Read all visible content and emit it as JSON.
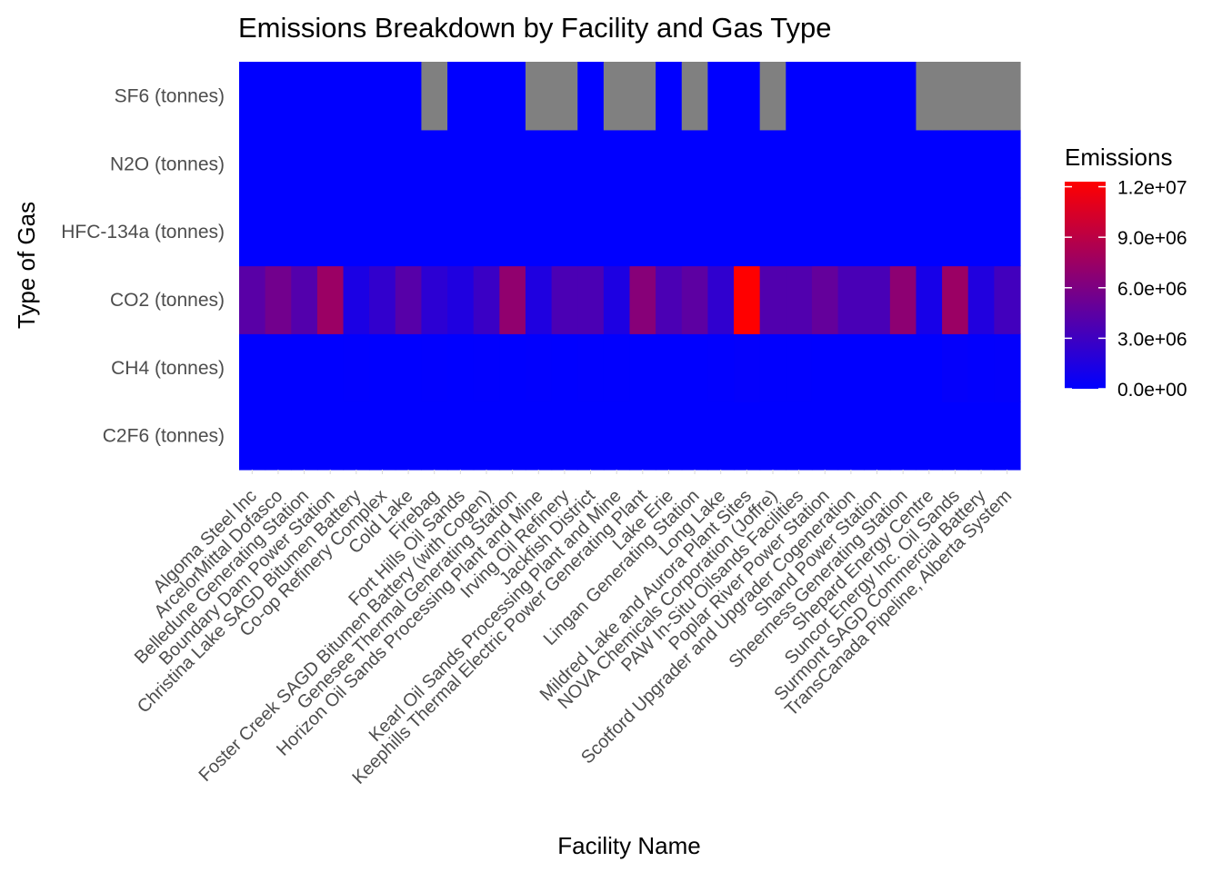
{
  "chart_data": {
    "type": "heatmap",
    "title": "Emissions Breakdown by Facility and Gas Type",
    "xlabel": "Facility Name",
    "ylabel": "Type of Gas",
    "legend": {
      "title": "Emissions",
      "position": "right",
      "ticks": [
        "0.0e+00",
        "3.0e+06",
        "6.0e+06",
        "9.0e+06",
        "1.2e+07"
      ],
      "tick_values": [
        0,
        3000000,
        6000000,
        9000000,
        12000000
      ],
      "range": [
        0,
        12300000
      ],
      "low_color": "#0000ff",
      "high_color": "#ff0000"
    },
    "na_color": "#808080",
    "grid": true,
    "x": [
      "Algoma Steel Inc",
      "ArcelorMittal Dofasco",
      "Belledune Generating Station",
      "Boundary Dam Power Station",
      "Christina Lake SAGD Bitumen Battery",
      "Co-op Refinery Complex",
      "Cold Lake",
      "Firebag",
      "Fort Hills Oil Sands",
      "Foster Creek SAGD Bitumen Battery (with Cogen)",
      "Genesee Thermal Generating Station",
      "Horizon Oil Sands Processing Plant and Mine",
      "Irving Oil Refinery",
      "Jackfish District",
      "Kearl Oil Sands Processing Plant and Mine",
      "Keephills Thermal Electric Power Generating Plant",
      "Lake Erie",
      "Lingan Generating Station",
      "Long Lake",
      "Mildred Lake and Aurora Plant Sites",
      "NOVA Chemicals Corporation (Joffre)",
      "PAW In-Situ Oilsands Facilities",
      "Poplar River Power Station",
      "Scotford Upgrader and Upgrader Cogeneration",
      "Shand Power Station",
      "Sheerness Generating Station",
      "Shepard Energy Centre",
      "Suncor Energy Inc. Oil Sands",
      "Surmont SAGD Commercial Battery",
      "TransCanada Pipeline, Alberta System"
    ],
    "y": [
      "C2F6 (tonnes)",
      "CH4 (tonnes)",
      "CO2 (tonnes)",
      "HFC-134a (tonnes)",
      "N2O (tonnes)",
      "SF6 (tonnes)"
    ],
    "values": {
      "C2F6 (tonnes)": [
        0,
        0,
        0,
        0,
        0,
        0,
        0,
        0,
        0,
        0,
        0,
        0,
        0,
        0,
        0,
        0,
        0,
        0,
        0,
        0,
        0,
        0,
        0,
        0,
        0,
        0,
        0,
        0,
        0,
        0
      ],
      "CH4 (tonnes)": [
        0,
        0,
        0,
        0,
        50000,
        0,
        20000,
        40000,
        20000,
        50000,
        0,
        60000,
        0,
        40000,
        40000,
        0,
        0,
        0,
        30000,
        150000,
        30000,
        30000,
        0,
        0,
        0,
        0,
        0,
        200000,
        100000,
        150000
      ],
      "CO2 (tonnes)": [
        4300000,
        5500000,
        4000000,
        7500000,
        1300000,
        2400000,
        4200000,
        2100000,
        1500000,
        2800000,
        7000000,
        1500000,
        3600000,
        3600000,
        1400000,
        6500000,
        3600000,
        4500000,
        2300000,
        12300000,
        3900000,
        3900000,
        4800000,
        3500000,
        3500000,
        6800000,
        1100000,
        7500000,
        1600000,
        3200000
      ],
      "HFC-134a (tonnes)": [
        0,
        0,
        0,
        0,
        0,
        0,
        0,
        0,
        0,
        0,
        0,
        0,
        0,
        0,
        0,
        0,
        0,
        0,
        0,
        0,
        0,
        0,
        0,
        0,
        0,
        0,
        0,
        0,
        0,
        0
      ],
      "N2O (tonnes)": [
        0,
        0,
        0,
        0,
        0,
        0,
        0,
        0,
        0,
        0,
        0,
        0,
        0,
        0,
        0,
        0,
        0,
        0,
        0,
        0,
        0,
        0,
        0,
        0,
        0,
        0,
        0,
        0,
        0,
        0
      ],
      "SF6 (tonnes)": [
        0,
        0,
        0,
        0,
        0,
        0,
        0,
        null,
        0,
        0,
        0,
        null,
        null,
        0,
        null,
        null,
        0,
        null,
        0,
        0,
        null,
        0,
        0,
        0,
        0,
        0,
        null,
        null,
        null,
        null
      ]
    }
  }
}
